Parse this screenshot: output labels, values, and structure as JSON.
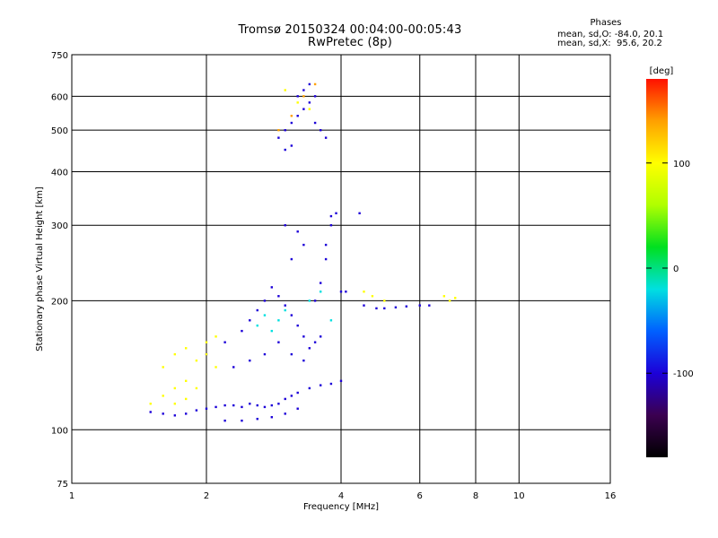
{
  "title": "Tromsø 20150324 00:04:00-00:05:43",
  "subtitle": "RwPretec (8p)",
  "phase_box": {
    "heading": "Phases",
    "line1": "mean, sd,O: -84.0, 20.1",
    "line2": "mean, sd,X:  95.6, 20.2"
  },
  "chart_data": {
    "type": "scatter",
    "title": "Tromsø 20150324 00:04:00-00:05:43",
    "subtitle": "RwPretec (8p)",
    "xlabel": "Frequency [MHz]",
    "ylabel": "Stationary phase Virtual Height [km]",
    "x_scale": "log",
    "y_scale": "log",
    "xlim": [
      1,
      16
    ],
    "ylim": [
      75,
      750
    ],
    "x_ticks": [
      1,
      2,
      4,
      6,
      8,
      10,
      16
    ],
    "y_ticks": [
      75,
      100,
      200,
      300,
      400,
      500,
      600,
      750
    ],
    "grid": true,
    "colorbar": {
      "label": "[deg]",
      "range": [
        -180,
        180
      ],
      "ticks": [
        100,
        0,
        -100
      ],
      "colormap": "rainbow",
      "colors": [
        "#000000",
        "#3b0050",
        "#1c00d8",
        "#0060ff",
        "#00e0e0",
        "#00e020",
        "#b0ff00",
        "#ffff00",
        "#ffa000",
        "#ff1000"
      ]
    },
    "series": [
      {
        "phase": -90,
        "points": [
          [
            1.5,
            110
          ],
          [
            1.6,
            109
          ],
          [
            1.7,
            108
          ],
          [
            1.8,
            109
          ],
          [
            1.9,
            111
          ],
          [
            2.0,
            112
          ],
          [
            2.1,
            113
          ],
          [
            2.2,
            114
          ],
          [
            2.3,
            114
          ],
          [
            2.4,
            113
          ],
          [
            2.5,
            115
          ],
          [
            2.6,
            114
          ],
          [
            2.7,
            113
          ],
          [
            2.8,
            114
          ],
          [
            2.9,
            115
          ],
          [
            3.0,
            118
          ],
          [
            3.1,
            120
          ],
          [
            3.2,
            122
          ],
          [
            3.4,
            125
          ],
          [
            3.6,
            127
          ],
          [
            3.8,
            128
          ],
          [
            4.0,
            130
          ],
          [
            2.2,
            105
          ],
          [
            2.4,
            105
          ],
          [
            2.6,
            106
          ],
          [
            2.8,
            107
          ],
          [
            3.0,
            109
          ],
          [
            3.2,
            112
          ]
        ]
      },
      {
        "phase": -110,
        "points": [
          [
            2.0,
            150
          ],
          [
            2.2,
            160
          ],
          [
            2.4,
            170
          ],
          [
            2.5,
            180
          ],
          [
            2.6,
            190
          ],
          [
            2.7,
            200
          ],
          [
            2.8,
            215
          ],
          [
            2.9,
            205
          ],
          [
            3.0,
            195
          ],
          [
            3.1,
            185
          ],
          [
            3.2,
            175
          ],
          [
            3.3,
            165
          ],
          [
            3.4,
            155
          ],
          [
            3.5,
            160
          ],
          [
            2.3,
            140
          ],
          [
            2.5,
            145
          ],
          [
            2.7,
            150
          ],
          [
            2.9,
            160
          ],
          [
            3.1,
            150
          ],
          [
            3.3,
            145
          ],
          [
            3.6,
            165
          ],
          [
            3.5,
            200
          ],
          [
            3.6,
            220
          ],
          [
            3.7,
            250
          ],
          [
            3.7,
            270
          ],
          [
            3.8,
            300
          ],
          [
            3.8,
            315
          ],
          [
            3.9,
            320
          ],
          [
            4.0,
            210
          ],
          [
            4.1,
            210
          ],
          [
            4.5,
            195
          ],
          [
            4.8,
            192
          ],
          [
            5.0,
            192
          ],
          [
            5.3,
            193
          ],
          [
            5.6,
            194
          ],
          [
            6.0,
            195
          ],
          [
            6.3,
            195
          ]
        ]
      },
      {
        "phase": -120,
        "points": [
          [
            2.9,
            480
          ],
          [
            3.0,
            500
          ],
          [
            3.1,
            520
          ],
          [
            3.2,
            540
          ],
          [
            3.3,
            560
          ],
          [
            3.4,
            580
          ],
          [
            3.5,
            600
          ],
          [
            3.3,
            620
          ],
          [
            3.4,
            640
          ],
          [
            3.2,
            600
          ],
          [
            3.0,
            450
          ],
          [
            3.1,
            460
          ],
          [
            3.5,
            520
          ],
          [
            3.6,
            500
          ],
          [
            3.7,
            480
          ],
          [
            3.0,
            300
          ],
          [
            3.2,
            290
          ],
          [
            4.4,
            320
          ],
          [
            3.1,
            250
          ],
          [
            3.3,
            270
          ]
        ]
      },
      {
        "phase": -30,
        "points": [
          [
            2.6,
            175
          ],
          [
            2.7,
            185
          ],
          [
            2.8,
            170
          ],
          [
            2.9,
            180
          ],
          [
            3.0,
            190
          ],
          [
            3.4,
            200
          ],
          [
            3.6,
            210
          ],
          [
            3.8,
            180
          ]
        ]
      },
      {
        "phase": 95,
        "points": [
          [
            1.5,
            115
          ],
          [
            1.6,
            120
          ],
          [
            1.7,
            125
          ],
          [
            1.8,
            130
          ],
          [
            1.6,
            140
          ],
          [
            1.7,
            150
          ],
          [
            1.8,
            155
          ],
          [
            1.9,
            145
          ],
          [
            2.0,
            150
          ],
          [
            2.1,
            140
          ],
          [
            1.7,
            115
          ],
          [
            1.8,
            118
          ],
          [
            1.9,
            125
          ],
          [
            2.0,
            160
          ],
          [
            2.1,
            165
          ],
          [
            4.5,
            210
          ],
          [
            4.7,
            205
          ],
          [
            5.0,
            200
          ],
          [
            6.8,
            205
          ],
          [
            7.0,
            200
          ],
          [
            7.2,
            203
          ],
          [
            3.0,
            620
          ],
          [
            3.2,
            580
          ],
          [
            3.4,
            560
          ]
        ]
      },
      {
        "phase": 150,
        "points": [
          [
            3.1,
            540
          ],
          [
            3.3,
            600
          ],
          [
            2.9,
            500
          ],
          [
            3.5,
            640
          ]
        ]
      }
    ]
  }
}
